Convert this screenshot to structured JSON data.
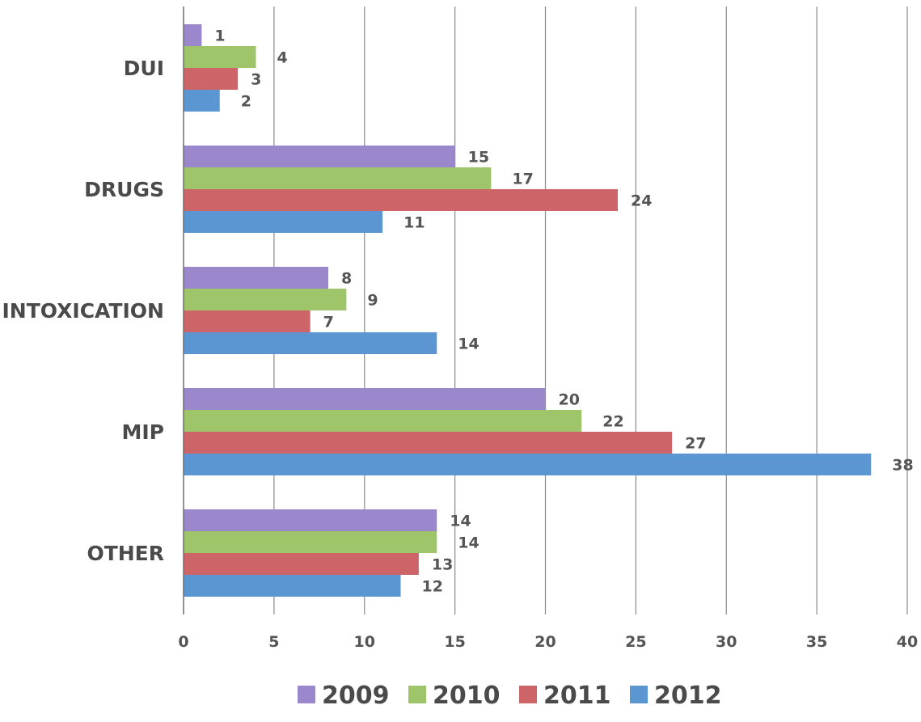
{
  "chart_data": {
    "type": "bar",
    "orientation": "horizontal",
    "categories": [
      "DUI",
      "DRUGS",
      "INTOXICATION",
      "MIP",
      "OTHER"
    ],
    "series": [
      {
        "name": "2009",
        "values": [
          1,
          15,
          8,
          20,
          14
        ],
        "color": "#9b88cc"
      },
      {
        "name": "2010",
        "values": [
          4,
          17,
          9,
          22,
          14
        ],
        "color": "#9ec56a"
      },
      {
        "name": "2011",
        "values": [
          3,
          24,
          7,
          27,
          13
        ],
        "color": "#cd6467"
      },
      {
        "name": "2012",
        "values": [
          2,
          11,
          14,
          38,
          12
        ],
        "color": "#5b96d3"
      }
    ],
    "xlim": [
      0,
      40
    ],
    "x_ticks": [
      0,
      5,
      10,
      15,
      20,
      25,
      30,
      35,
      40
    ],
    "title": "",
    "xlabel": "",
    "ylabel": "",
    "grid": "vertical",
    "legend": "bottom",
    "data_labels": true
  }
}
